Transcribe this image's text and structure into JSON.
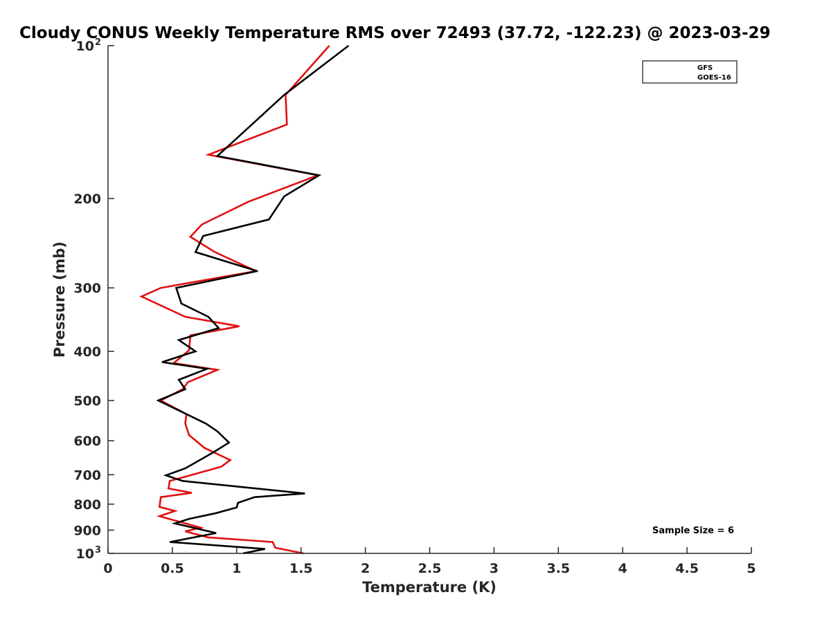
{
  "chart_data": {
    "type": "line",
    "title": "Cloudy CONUS Weekly Temperature RMS over 72493 (37.72, -122.23) @ 2023-03-29",
    "xlabel": "Temperature (K)",
    "ylabel": "Pressure (mb)",
    "xlim": [
      0,
      5
    ],
    "ylim": [
      100,
      1000
    ],
    "yscale": "log",
    "y_reversed": true,
    "x_ticks": [
      0,
      0.5,
      1,
      1.5,
      2,
      2.5,
      3,
      3.5,
      4,
      4.5,
      5
    ],
    "x_tick_labels": [
      "0",
      "0.5",
      "1",
      "1.5",
      "2",
      "2.5",
      "3",
      "3.5",
      "4",
      "4.5",
      "5"
    ],
    "y_ticks": [
      100,
      200,
      300,
      400,
      500,
      600,
      700,
      800,
      900,
      1000
    ],
    "y_tick_labels": [
      {
        "base": "10",
        "exp": "2"
      },
      {
        "base": "200",
        "exp": ""
      },
      {
        "base": "300",
        "exp": ""
      },
      {
        "base": "400",
        "exp": ""
      },
      {
        "base": "500",
        "exp": ""
      },
      {
        "base": "600",
        "exp": ""
      },
      {
        "base": "700",
        "exp": ""
      },
      {
        "base": "800",
        "exp": ""
      },
      {
        "base": "900",
        "exp": ""
      },
      {
        "base": "10",
        "exp": "3"
      }
    ],
    "grid": false,
    "legend_position": "top-right",
    "annotation": "Sample Size = 6",
    "series": [
      {
        "name": "GFS",
        "color": "#e01010",
        "points": [
          [
            1.72,
            100
          ],
          [
            1.38,
            125
          ],
          [
            1.39,
            143
          ],
          [
            0.78,
            164
          ],
          [
            1.63,
            180
          ],
          [
            1.09,
            203
          ],
          [
            0.73,
            225
          ],
          [
            0.64,
            238
          ],
          [
            0.83,
            255
          ],
          [
            1.15,
            278
          ],
          [
            0.41,
            300
          ],
          [
            0.26,
            312
          ],
          [
            0.6,
            342
          ],
          [
            1.02,
            357
          ],
          [
            0.64,
            372
          ],
          [
            0.63,
            398
          ],
          [
            0.51,
            422
          ],
          [
            0.85,
            435
          ],
          [
            0.62,
            460
          ],
          [
            0.58,
            475
          ],
          [
            0.41,
            500
          ],
          [
            0.61,
            532
          ],
          [
            0.6,
            555
          ],
          [
            0.63,
            585
          ],
          [
            0.75,
            620
          ],
          [
            0.95,
            655
          ],
          [
            0.88,
            675
          ],
          [
            0.48,
            720
          ],
          [
            0.47,
            745
          ],
          [
            0.65,
            760
          ],
          [
            0.41,
            775
          ],
          [
            0.4,
            810
          ],
          [
            0.52,
            825
          ],
          [
            0.4,
            845
          ],
          [
            0.72,
            890
          ],
          [
            0.6,
            905
          ],
          [
            0.78,
            930
          ],
          [
            1.28,
            950
          ],
          [
            1.3,
            975
          ],
          [
            1.52,
            1000
          ]
        ]
      },
      {
        "name": "GOES-16",
        "color": "#000000",
        "points": [
          [
            1.87,
            100
          ],
          [
            1.37,
            125
          ],
          [
            0.85,
            165
          ],
          [
            1.64,
            180
          ],
          [
            1.37,
            198
          ],
          [
            1.25,
            220
          ],
          [
            0.74,
            237
          ],
          [
            0.68,
            255
          ],
          [
            1.16,
            278
          ],
          [
            0.53,
            300
          ],
          [
            0.57,
            322
          ],
          [
            0.78,
            342
          ],
          [
            0.86,
            360
          ],
          [
            0.55,
            380
          ],
          [
            0.68,
            400
          ],
          [
            0.42,
            420
          ],
          [
            0.77,
            433
          ],
          [
            0.55,
            455
          ],
          [
            0.6,
            475
          ],
          [
            0.39,
            500
          ],
          [
            0.76,
            555
          ],
          [
            0.85,
            575
          ],
          [
            0.94,
            605
          ],
          [
            0.82,
            632
          ],
          [
            0.6,
            680
          ],
          [
            0.45,
            702
          ],
          [
            0.58,
            720
          ],
          [
            1.53,
            762
          ],
          [
            1.14,
            775
          ],
          [
            1.01,
            795
          ],
          [
            1.0,
            812
          ],
          [
            0.84,
            833
          ],
          [
            0.63,
            855
          ],
          [
            0.52,
            873
          ],
          [
            0.84,
            912
          ],
          [
            0.48,
            950
          ],
          [
            1.22,
            980
          ],
          [
            1.05,
            1000
          ]
        ]
      }
    ]
  }
}
